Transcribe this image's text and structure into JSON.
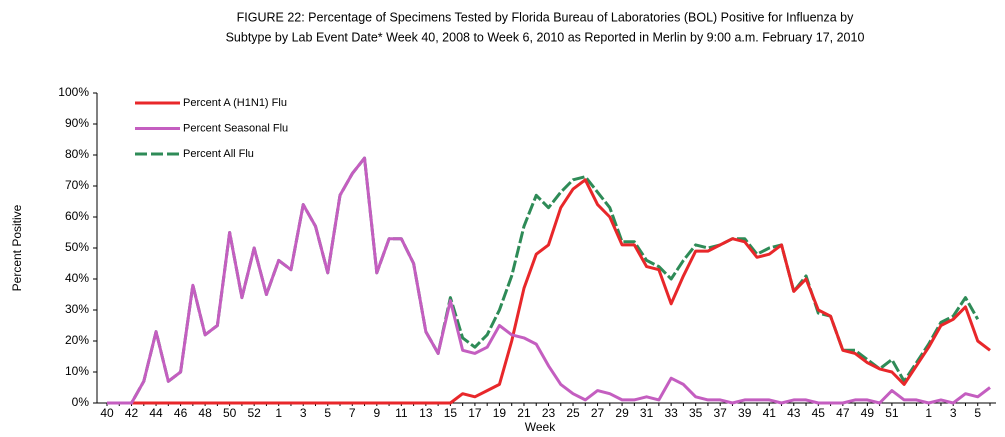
{
  "chart_data": {
    "type": "line",
    "title": "FIGURE 22: Percentage of Specimens Tested by Florida Bureau of Laboratories (BOL) Positive for Influenza by",
    "subtitle": "Subtype by Lab Event Date* Week 40, 2008 to Week 6, 2010 as Reported in Merlin by 9:00 a.m. February 17, 2010",
    "x_label": "Week",
    "y_label": "Percent Positive",
    "categories": [
      "40",
      null,
      "42",
      null,
      "44",
      null,
      "46",
      null,
      "48",
      null,
      "50",
      null,
      "52",
      null,
      "1",
      null,
      "3",
      null,
      "5",
      null,
      "7",
      null,
      "9",
      null,
      "11",
      null,
      "13",
      null,
      "15",
      null,
      "17",
      null,
      "19",
      null,
      "21",
      null,
      "23",
      null,
      "25",
      null,
      "27",
      null,
      "29",
      null,
      "31",
      null,
      "33",
      null,
      "35",
      null,
      "37",
      null,
      "39",
      null,
      "41",
      null,
      "43",
      null,
      "45",
      null,
      "47",
      null,
      "49",
      null,
      "51",
      null,
      null,
      "1",
      null,
      "3",
      null,
      "5",
      null
    ],
    "series": [
      {
        "name": "Percent A (H1N1) Flu",
        "color": "#e8272a",
        "dash": false,
        "values": [
          0,
          0,
          0,
          0,
          0,
          0,
          0,
          0,
          0,
          0,
          0,
          0,
          0,
          0,
          0,
          0,
          0,
          0,
          0,
          0,
          0,
          0,
          0,
          0,
          0,
          0,
          0,
          0,
          0,
          3,
          2,
          4,
          6,
          20,
          37,
          48,
          51,
          63,
          69,
          72,
          64,
          60,
          51,
          51,
          44,
          43,
          32,
          41,
          49,
          49,
          51,
          53,
          52,
          47,
          48,
          51,
          36,
          40,
          30,
          28,
          17,
          16,
          13,
          11,
          10,
          6,
          12,
          18,
          25,
          27,
          31,
          20,
          17
        ]
      },
      {
        "name": "Percent Seasonal Flu",
        "color": "#c45ec0",
        "dash": false,
        "values": [
          0,
          0,
          0,
          7,
          23,
          7,
          10,
          38,
          22,
          25,
          55,
          34,
          50,
          35,
          46,
          43,
          64,
          57,
          42,
          67,
          74,
          79,
          42,
          53,
          53,
          45,
          23,
          16,
          33,
          17,
          16,
          18,
          25,
          22,
          21,
          19,
          12,
          6,
          3,
          1,
          4,
          3,
          1,
          1,
          2,
          1,
          8,
          6,
          2,
          1,
          1,
          0,
          1,
          1,
          1,
          0,
          1,
          1,
          0,
          0,
          0,
          1,
          1,
          0,
          4,
          1,
          1,
          0,
          1,
          0,
          3,
          2,
          5
        ]
      },
      {
        "name": "Percent All Flu",
        "color": "#2e8b57",
        "dash": true,
        "values": [
          0,
          0,
          0,
          7,
          23,
          7,
          10,
          38,
          22,
          25,
          55,
          34,
          50,
          35,
          46,
          43,
          64,
          57,
          42,
          67,
          74,
          79,
          42,
          53,
          53,
          45,
          23,
          16,
          34,
          21,
          18,
          22,
          30,
          41,
          57,
          67,
          63,
          68,
          72,
          73,
          68,
          63,
          52,
          52,
          46,
          44,
          40,
          46,
          51,
          50,
          51,
          53,
          53,
          48,
          50,
          51,
          36,
          41,
          29,
          28,
          17,
          17,
          14,
          11,
          14,
          7,
          13,
          19,
          26,
          28,
          34,
          27,
          null
        ]
      }
    ],
    "ylim": [
      0,
      100
    ],
    "yticks": [
      {
        "value": 0,
        "label": "0%"
      },
      {
        "value": 10,
        "label": "10%"
      },
      {
        "value": 20,
        "label": "20%"
      },
      {
        "value": 30,
        "label": "30%"
      },
      {
        "value": 40,
        "label": "40%"
      },
      {
        "value": 50,
        "label": "50%"
      },
      {
        "value": 60,
        "label": "60%"
      },
      {
        "value": 70,
        "label": "70%"
      },
      {
        "value": 80,
        "label": "80%"
      },
      {
        "value": 90,
        "label": "90%"
      },
      {
        "value": 100,
        "label": "100%"
      }
    ],
    "grid": false,
    "legend": "upper-left"
  }
}
